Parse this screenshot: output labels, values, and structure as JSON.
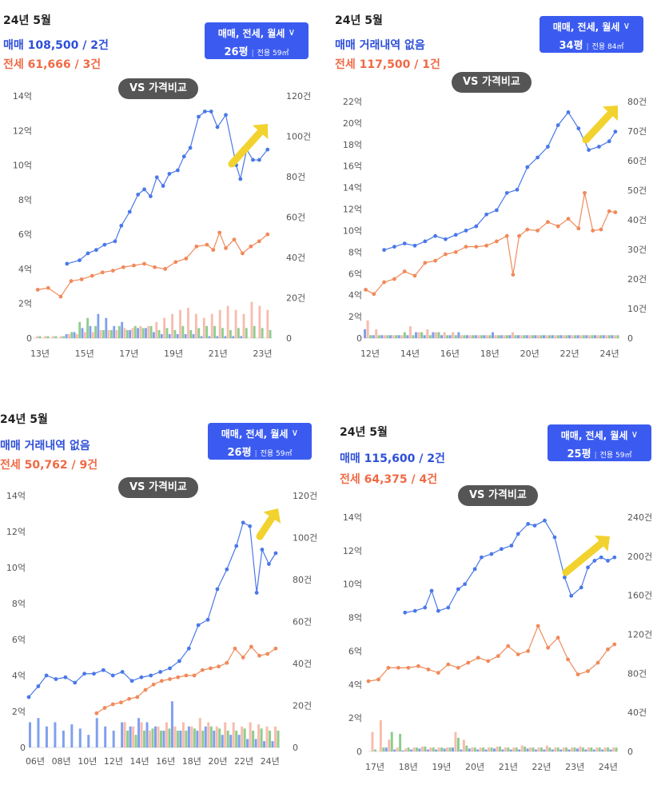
{
  "colors": {
    "sale": "#4a78e8",
    "jeonse": "#f08a5a",
    "rent": "#5cb85c",
    "accent": "#3b5bf0",
    "arrow": "#f2d22e"
  },
  "panels": [
    {
      "period": "24년 5월",
      "sale_text": "매매 108,500 / 2건",
      "jeonse_text": "전세 61,666 / 3건",
      "filter_label": "매매, 전세, 월세",
      "filter_icon": "chevron-down-icon",
      "size_label": "26평",
      "area_label": "전용 59㎡",
      "vs_label": "VS 가격비교"
    },
    {
      "period": "24년 5월",
      "sale_text": "매매 거래내역 없음",
      "jeonse_text": "전세 117,500 / 1건",
      "filter_label": "매매, 전세, 월세",
      "filter_icon": "chevron-down-icon",
      "size_label": "34평",
      "area_label": "전용 84㎡",
      "vs_label": "VS 가격비교"
    },
    {
      "period": "24년 5월",
      "sale_text": "매매 거래내역 없음",
      "jeonse_text": "전세 50,762 / 9건",
      "filter_label": "매매, 전세, 월세",
      "filter_icon": "chevron-down-icon",
      "size_label": "26평",
      "area_label": "전용 59㎡",
      "vs_label": "VS 가격비교"
    },
    {
      "period": "24년 5월",
      "sale_text": "매매 115,600 / 2건",
      "jeonse_text": "전세 64,375 / 4건",
      "filter_label": "매매, 전세, 월세",
      "filter_icon": "chevron-down-icon",
      "size_label": "25평",
      "area_label": "전용 59㎡",
      "vs_label": "VS 가격비교"
    }
  ],
  "chart_data": [
    {
      "type": "line",
      "y_ticks": [
        "0",
        "2억",
        "4억",
        "6억",
        "8억",
        "10억",
        "12억",
        "14억"
      ],
      "ylim": [
        0,
        14
      ],
      "y2_ticks": [
        "0",
        "20건",
        "40건",
        "60건",
        "80건",
        "100건",
        "120건"
      ],
      "y2lim": [
        0,
        120
      ],
      "x_ticks": [
        "13년",
        "15년",
        "17년",
        "19년",
        "21년",
        "23년"
      ],
      "xlim": [
        2013,
        2024.4
      ],
      "series": [
        {
          "key": "sale",
          "x": [
            2014.6,
            2015.2,
            2015.6,
            2016.0,
            2016.4,
            2016.9,
            2017.2,
            2017.6,
            2018.0,
            2018.3,
            2018.6,
            2018.9,
            2019.2,
            2019.5,
            2019.9,
            2020.2,
            2020.5,
            2020.9,
            2021.2,
            2021.5,
            2021.8,
            2022.2,
            2022.7,
            2022.9,
            2023.2,
            2023.5,
            2023.8,
            2024.2
          ],
          "y": [
            4.3,
            4.5,
            4.9,
            5.1,
            5.4,
            5.6,
            6.5,
            7.3,
            8.3,
            8.6,
            8.2,
            9.3,
            8.8,
            9.5,
            9.7,
            10.5,
            11.0,
            12.8,
            13.1,
            13.1,
            12.2,
            12.9,
            10.0,
            9.2,
            10.9,
            10.3,
            10.3,
            10.9
          ]
        },
        {
          "key": "jeonse",
          "x": [
            2013.2,
            2013.7,
            2014.3,
            2014.8,
            2015.3,
            2015.8,
            2016.3,
            2016.8,
            2017.3,
            2017.8,
            2018.3,
            2018.8,
            2019.3,
            2019.8,
            2020.3,
            2020.8,
            2021.3,
            2021.6,
            2021.9,
            2022.2,
            2022.6,
            2023.0,
            2023.4,
            2023.8,
            2024.2
          ],
          "y": [
            2.8,
            2.9,
            2.4,
            3.3,
            3.4,
            3.6,
            3.8,
            3.9,
            4.1,
            4.2,
            4.3,
            4.1,
            4.0,
            4.4,
            4.6,
            5.3,
            5.4,
            5.1,
            6.1,
            5.2,
            5.7,
            4.9,
            5.3,
            5.6,
            6.0
          ]
        }
      ],
      "bars": {
        "sale": [
          0,
          0,
          0,
          0,
          2,
          3,
          5,
          6,
          12,
          10,
          6,
          8,
          4,
          5,
          5,
          3,
          2,
          2,
          2,
          2,
          2,
          1,
          1,
          1,
          1,
          1,
          1,
          0,
          0,
          0
        ],
        "jeonse": [
          1,
          1,
          1,
          1,
          2,
          2,
          3,
          3,
          4,
          4,
          4,
          5,
          5,
          6,
          6,
          8,
          10,
          12,
          14,
          15,
          12,
          10,
          12,
          14,
          16,
          14,
          12,
          18,
          16,
          14
        ],
        "rent": [
          1,
          1,
          1,
          1,
          3,
          8,
          10,
          6,
          4,
          4,
          6,
          4,
          6,
          5,
          6,
          4,
          5,
          4,
          6,
          4,
          5,
          6,
          6,
          5,
          4,
          5,
          5,
          6,
          5,
          4
        ]
      }
    },
    {
      "type": "line",
      "y_ticks": [
        "0",
        "2억",
        "4억",
        "6억",
        "8억",
        "10억",
        "12억",
        "14억",
        "16억",
        "18억",
        "20억",
        "22억"
      ],
      "ylim": [
        0,
        22
      ],
      "y2_ticks": [
        "0",
        "10건",
        "20건",
        "30건",
        "40건",
        "50건",
        "60건",
        "70건",
        "80건"
      ],
      "y2lim": [
        0,
        80
      ],
      "x_ticks": [
        "12년",
        "14년",
        "16년",
        "18년",
        "20년",
        "22년",
        "24년"
      ],
      "xlim": [
        2012,
        2024.5
      ],
      "series": [
        {
          "key": "sale",
          "x": [
            2013.0,
            2013.5,
            2014.0,
            2014.5,
            2015.0,
            2015.5,
            2016.0,
            2016.5,
            2017.0,
            2017.5,
            2018.0,
            2018.5,
            2019.0,
            2019.5,
            2020.0,
            2020.5,
            2021.0,
            2021.5,
            2022.0,
            2022.5,
            2023.0,
            2023.5,
            2024.0,
            2024.3
          ],
          "y": [
            8.2,
            8.5,
            8.8,
            8.6,
            9.0,
            9.5,
            9.2,
            9.6,
            10.0,
            10.4,
            11.5,
            11.9,
            13.5,
            13.8,
            15.9,
            16.8,
            17.8,
            19.8,
            21.0,
            19.5,
            17.5,
            17.8,
            18.3,
            19.2
          ]
        },
        {
          "key": "jeonse",
          "x": [
            2012.1,
            2012.5,
            2013.0,
            2013.5,
            2014.0,
            2014.5,
            2015.0,
            2015.5,
            2016.0,
            2016.5,
            2017.0,
            2017.5,
            2018.0,
            2018.5,
            2019.0,
            2019.3,
            2019.6,
            2020.0,
            2020.5,
            2021.0,
            2021.5,
            2022.0,
            2022.5,
            2022.8,
            2023.2,
            2023.6,
            2024.0,
            2024.3
          ],
          "y": [
            4.5,
            4.1,
            5.2,
            5.5,
            6.2,
            5.8,
            7.0,
            7.2,
            7.8,
            8.0,
            8.5,
            8.5,
            8.6,
            9.0,
            9.5,
            5.9,
            9.5,
            10.1,
            10.0,
            10.8,
            10.4,
            11.1,
            10.2,
            13.5,
            10.0,
            10.1,
            11.8,
            11.7
          ]
        }
      ],
      "bars": {
        "sale": [
          3,
          1,
          1,
          1,
          1,
          1,
          2,
          1,
          2,
          1,
          1,
          2,
          1,
          1,
          1,
          2,
          1,
          1,
          1,
          1,
          1,
          1,
          1,
          1,
          1,
          1,
          1,
          1,
          1,
          1
        ],
        "jeonse": [
          6,
          3,
          1,
          1,
          1,
          4,
          2,
          3,
          2,
          2,
          2,
          1,
          1,
          1,
          1,
          1,
          1,
          2,
          1,
          1,
          1,
          1,
          1,
          1,
          1,
          1,
          1,
          1,
          1,
          1
        ],
        "rent": [
          1,
          1,
          1,
          1,
          2,
          1,
          2,
          1,
          2,
          1,
          1,
          1,
          1,
          1,
          1,
          1,
          1,
          1,
          1,
          1,
          1,
          1,
          1,
          1,
          1,
          1,
          1,
          1,
          1,
          1
        ]
      }
    },
    {
      "type": "line",
      "y_ticks": [
        "0",
        "2억",
        "4억",
        "6억",
        "8억",
        "10억",
        "12억",
        "14억"
      ],
      "ylim": [
        0,
        14
      ],
      "y2_ticks": [
        "0",
        "20건",
        "40건",
        "60건",
        "80건",
        "100건",
        "120건"
      ],
      "y2lim": [
        0,
        120
      ],
      "x_ticks": [
        "06년",
        "08년",
        "10년",
        "12년",
        "14년",
        "16년",
        "18년",
        "20년",
        "22년",
        "24년"
      ],
      "xlim": [
        2006,
        2024.5
      ],
      "series": [
        {
          "key": "sale",
          "x": [
            2006.0,
            2006.7,
            2007.3,
            2008.0,
            2008.7,
            2009.4,
            2010.1,
            2010.8,
            2011.5,
            2012.2,
            2012.9,
            2013.6,
            2014.3,
            2015.0,
            2015.7,
            2016.4,
            2017.1,
            2017.8,
            2018.5,
            2019.2,
            2019.9,
            2020.6,
            2021.3,
            2021.8,
            2022.3,
            2022.8,
            2023.2,
            2023.7,
            2024.2
          ],
          "y": [
            2.8,
            3.4,
            4.0,
            3.8,
            3.9,
            3.6,
            4.1,
            4.1,
            4.3,
            4.0,
            4.2,
            3.7,
            3.9,
            4.0,
            4.2,
            4.4,
            4.8,
            5.5,
            6.8,
            7.1,
            8.8,
            9.9,
            11.2,
            12.5,
            12.3,
            8.6,
            11.0,
            10.2,
            10.8
          ]
        },
        {
          "key": "jeonse",
          "x": [
            2011.0,
            2011.6,
            2012.2,
            2012.8,
            2013.4,
            2014.0,
            2014.6,
            2015.2,
            2015.8,
            2016.4,
            2017.0,
            2017.6,
            2018.2,
            2018.8,
            2019.4,
            2020.0,
            2020.6,
            2021.2,
            2021.8,
            2022.4,
            2023.0,
            2023.6,
            2024.2
          ],
          "y": [
            1.9,
            2.2,
            2.4,
            2.5,
            2.7,
            2.8,
            3.2,
            3.5,
            3.7,
            3.8,
            3.9,
            4.0,
            4.0,
            4.3,
            4.4,
            4.5,
            4.7,
            5.5,
            5.0,
            5.6,
            5.1,
            5.2,
            5.5
          ]
        }
      ],
      "bars": {
        "sale": [
          12,
          14,
          10,
          12,
          8,
          11,
          9,
          6,
          14,
          10,
          8,
          12,
          10,
          14,
          12,
          10,
          8,
          22,
          8,
          10,
          8,
          10,
          8,
          6,
          6,
          6,
          4,
          4,
          3,
          3
        ],
        "jeonse": [
          0,
          0,
          0,
          0,
          0,
          0,
          0,
          0,
          0,
          0,
          0,
          12,
          10,
          12,
          8,
          10,
          12,
          10,
          12,
          10,
          14,
          12,
          10,
          12,
          12,
          10,
          12,
          11,
          10,
          10
        ],
        "rent": [
          0,
          0,
          0,
          0,
          0,
          0,
          0,
          0,
          0,
          0,
          0,
          8,
          6,
          8,
          9,
          8,
          9,
          8,
          8,
          9,
          8,
          10,
          9,
          8,
          8,
          9,
          8,
          9,
          8,
          8
        ]
      }
    },
    {
      "type": "line",
      "y_ticks": [
        "0",
        "2억",
        "4억",
        "6억",
        "8억",
        "10억",
        "12억",
        "14억"
      ],
      "ylim": [
        0,
        14
      ],
      "y2_ticks": [
        "0",
        "40건",
        "80건",
        "120건",
        "160건",
        "200건",
        "240건"
      ],
      "y2lim": [
        0,
        240
      ],
      "x_ticks": [
        "17년",
        "18년",
        "19년",
        "20년",
        "21년",
        "22년",
        "23년",
        "24년"
      ],
      "xlim": [
        2017,
        2024.5
      ],
      "series": [
        {
          "key": "sale",
          "x": [
            2018.1,
            2018.4,
            2018.7,
            2018.9,
            2019.1,
            2019.4,
            2019.7,
            2019.9,
            2020.2,
            2020.4,
            2020.7,
            2021.0,
            2021.3,
            2021.5,
            2021.8,
            2022.0,
            2022.3,
            2022.6,
            2022.9,
            2023.1,
            2023.4,
            2023.6,
            2023.8,
            2024.0,
            2024.2,
            2024.4
          ],
          "y": [
            8.3,
            8.4,
            8.6,
            9.6,
            8.4,
            8.6,
            9.7,
            10.0,
            10.9,
            11.6,
            11.8,
            12.1,
            12.3,
            13.0,
            13.6,
            13.5,
            13.8,
            12.8,
            10.4,
            9.3,
            9.8,
            11.0,
            11.4,
            11.6,
            11.4,
            11.6
          ]
        },
        {
          "key": "jeonse",
          "x": [
            2017.0,
            2017.3,
            2017.6,
            2017.9,
            2018.2,
            2018.5,
            2018.8,
            2019.1,
            2019.4,
            2019.7,
            2020.0,
            2020.3,
            2020.6,
            2020.9,
            2021.2,
            2021.5,
            2021.8,
            2022.1,
            2022.4,
            2022.7,
            2023.0,
            2023.3,
            2023.6,
            2023.9,
            2024.2,
            2024.4
          ],
          "y": [
            4.2,
            4.3,
            5.0,
            5.0,
            5.0,
            5.1,
            4.9,
            4.7,
            5.2,
            5.0,
            5.3,
            5.6,
            5.4,
            5.7,
            6.3,
            5.8,
            6.0,
            7.5,
            6.2,
            6.8,
            5.5,
            4.6,
            4.8,
            5.3,
            6.1,
            6.4
          ]
        }
      ],
      "bars": {
        "sale": [
          0,
          0,
          4,
          2,
          1,
          2,
          3,
          2,
          2,
          3,
          4,
          2,
          3,
          2,
          2,
          3,
          2,
          2,
          2,
          3,
          2,
          2,
          2,
          2,
          2,
          3,
          2,
          2,
          2,
          2
        ],
        "jeonse": [
          20,
          32,
          12,
          4,
          3,
          4,
          5,
          4,
          4,
          4,
          20,
          12,
          4,
          4,
          4,
          5,
          4,
          4,
          6,
          4,
          4,
          6,
          4,
          4,
          4,
          5,
          4,
          4,
          4,
          4
        ],
        "rent": [
          2,
          4,
          20,
          18,
          4,
          4,
          5,
          4,
          4,
          4,
          14,
          6,
          4,
          4,
          4,
          5,
          4,
          4,
          5,
          4,
          4,
          4,
          4,
          4,
          4,
          4,
          4,
          4,
          4,
          4
        ]
      }
    }
  ]
}
